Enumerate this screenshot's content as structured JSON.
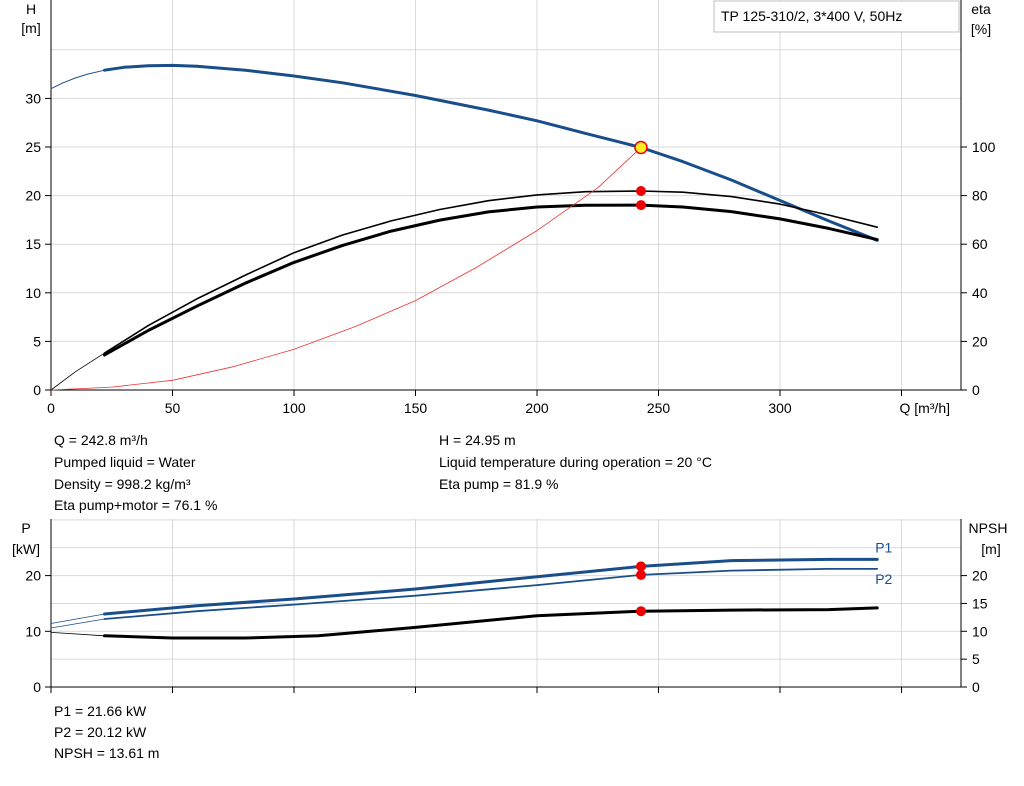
{
  "chart_data": [
    {
      "type": "line",
      "title": "TP 125-310/2, 3*400 V, 50Hz",
      "xlabel": "Q [m³/h]",
      "ylabel_left": "H\n[m]",
      "ylabel_right": "eta\n[%]",
      "xlim": [
        0,
        370
      ],
      "ylim_left": [
        0,
        40
      ],
      "ylim_right": [
        0,
        160
      ],
      "xticks": [
        "0",
        "50",
        "100",
        "150",
        "200",
        "250",
        "300"
      ],
      "yticks_left": [
        "0",
        "5",
        "10",
        "15",
        "20",
        "25",
        "30"
      ],
      "yticks_right": [
        "0",
        "20",
        "40",
        "60",
        "80",
        "100"
      ],
      "grid": true,
      "series": [
        {
          "axis": "left",
          "color": "#1a4e8a",
          "width": 3,
          "x": [
            22,
            30,
            40,
            50,
            60,
            80,
            100,
            120,
            150,
            180,
            200,
            220,
            242.8,
            260,
            280,
            300,
            320,
            340
          ],
          "values": [
            32.9,
            33.2,
            33.35,
            33.4,
            33.3,
            32.9,
            32.3,
            31.6,
            30.3,
            28.8,
            27.7,
            26.4,
            24.95,
            23.5,
            21.6,
            19.5,
            17.4,
            15.4
          ]
        },
        {
          "axis": "left",
          "color": "#1a4e8a",
          "width": 1,
          "x": [
            0,
            5,
            10,
            15,
            22
          ],
          "values": [
            31.0,
            31.6,
            32.1,
            32.5,
            32.9
          ]
        },
        {
          "axis": "right",
          "color": "#000000",
          "width": 1.6,
          "x": [
            22,
            40,
            60,
            80,
            100,
            120,
            140,
            160,
            180,
            200,
            220,
            242.8,
            260,
            280,
            300,
            320,
            340
          ],
          "values": [
            15.2,
            26.5,
            37.5,
            47.3,
            56.5,
            63.8,
            69.6,
            74.3,
            77.9,
            80.3,
            81.6,
            81.9,
            81.4,
            79.6,
            76.5,
            72.0,
            67.0
          ]
        },
        {
          "axis": "right",
          "color": "#000000",
          "width": 3,
          "x": [
            22,
            40,
            60,
            80,
            100,
            120,
            140,
            160,
            180,
            200,
            220,
            242.8,
            260,
            280,
            300,
            320,
            340
          ],
          "values": [
            14.4,
            24.5,
            34.5,
            44.0,
            52.5,
            59.5,
            65.4,
            69.9,
            73.3,
            75.3,
            76.0,
            76.1,
            75.3,
            73.4,
            70.4,
            66.5,
            61.9
          ]
        },
        {
          "axis": "right",
          "color": "#000000",
          "width": 0.8,
          "x": [
            0,
            10,
            22
          ],
          "values": [
            0,
            7.5,
            15.2
          ]
        },
        {
          "axis": "left",
          "color": "#ee3333",
          "width": 0.8,
          "x": [
            0,
            25,
            50,
            75,
            100,
            125,
            150,
            175,
            200,
            225,
            242.8
          ],
          "values": [
            0,
            0.3,
            1.0,
            2.4,
            4.2,
            6.5,
            9.2,
            12.6,
            16.4,
            20.8,
            24.95
          ]
        }
      ],
      "markers": [
        {
          "x": 242.8,
          "y": 24.95,
          "axis": "left",
          "fill": "#ffee22",
          "stroke": "#ee0000",
          "r": 6
        },
        {
          "x": 242.8,
          "y": 81.9,
          "axis": "right",
          "fill": "#ee0000",
          "r": 5
        },
        {
          "x": 242.8,
          "y": 76.1,
          "axis": "right",
          "fill": "#ee0000",
          "r": 5
        }
      ]
    },
    {
      "type": "line",
      "xlabel": "",
      "ylabel_left": "P\n[kW]",
      "ylabel_right": "NPSH\n[m]",
      "xlim": [
        0,
        370
      ],
      "ylim_left": [
        0,
        30
      ],
      "ylim_right": [
        0,
        30
      ],
      "yticks_left": [
        "0",
        "10",
        "20"
      ],
      "yticks_right": [
        "0",
        "5",
        "10",
        "15",
        "20"
      ],
      "grid": true,
      "series": [
        {
          "name": "P1",
          "axis": "left",
          "color": "#1a4e8a",
          "width": 3,
          "x": [
            22,
            60,
            100,
            150,
            200,
            242.8,
            280,
            320,
            340
          ],
          "values": [
            13.1,
            14.6,
            15.8,
            17.6,
            19.8,
            21.66,
            22.7,
            22.9,
            22.9
          ]
        },
        {
          "name": "P2",
          "axis": "left",
          "color": "#1a4e8a",
          "width": 1.8,
          "x": [
            22,
            60,
            100,
            150,
            200,
            242.8,
            280,
            320,
            340
          ],
          "values": [
            12.2,
            13.6,
            14.8,
            16.4,
            18.3,
            20.12,
            20.9,
            21.2,
            21.2
          ]
        },
        {
          "axis": "left",
          "color": "#1a4e8a",
          "width": 0.8,
          "x": [
            0,
            22
          ],
          "values": [
            11.4,
            13.1
          ]
        },
        {
          "axis": "left",
          "color": "#1a4e8a",
          "width": 0.8,
          "x": [
            0,
            22
          ],
          "values": [
            10.6,
            12.2
          ]
        },
        {
          "axis": "right",
          "color": "#000000",
          "width": 3,
          "x": [
            22,
            50,
            80,
            110,
            150,
            200,
            242.8,
            280,
            320,
            340
          ],
          "values": [
            9.2,
            8.8,
            8.8,
            9.2,
            10.7,
            12.8,
            13.61,
            13.8,
            13.9,
            14.2
          ]
        },
        {
          "axis": "right",
          "color": "#000000",
          "width": 0.8,
          "x": [
            0,
            22
          ],
          "values": [
            9.8,
            9.2
          ]
        }
      ],
      "markers": [
        {
          "x": 242.8,
          "y": 21.66,
          "axis": "left",
          "fill": "#ee0000",
          "r": 5
        },
        {
          "x": 242.8,
          "y": 20.12,
          "axis": "left",
          "fill": "#ee0000",
          "r": 5
        },
        {
          "x": 242.8,
          "y": 13.61,
          "axis": "right",
          "fill": "#ee0000",
          "r": 5
        }
      ]
    }
  ],
  "results_top": {
    "q": "Q = 242.8 m³/h",
    "liquid": "Pumped liquid = Water",
    "density": "Density = 998.2 kg/m³",
    "eta_total": "Eta pump+motor = 76.1 %",
    "h": "H = 24.95 m",
    "temp": "Liquid temperature during operation = 20 °C",
    "eta_pump": "Eta pump = 81.9 %"
  },
  "results_bottom": {
    "p1": "P1 = 21.66 kW",
    "p2": "P2 = 20.12 kW",
    "npsh": "NPSH = 13.61 m"
  }
}
